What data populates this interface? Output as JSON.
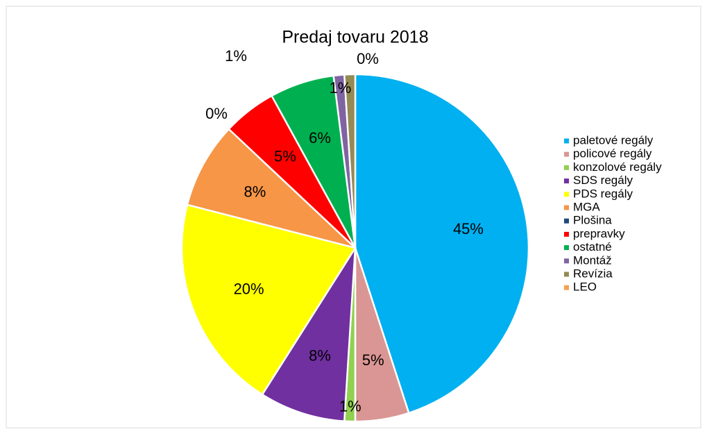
{
  "chart_data": {
    "type": "pie",
    "title": "Predaj tovaru 2018",
    "categories": [
      "paletové regály",
      "policové regály",
      "konzolové regály",
      "SDS regály",
      "PDS regály",
      "MGA",
      "Plošina",
      "prepravky",
      "ostatné",
      "Montáž",
      "Revízia",
      "LEO"
    ],
    "values": [
      45,
      5,
      1,
      8,
      20,
      8,
      0,
      5,
      6,
      1,
      1,
      0
    ],
    "colors": [
      "#00b0f0",
      "#da9694",
      "#92d050",
      "#7030a0",
      "#ffff00",
      "#f79646",
      "#1f497d",
      "#ff0000",
      "#00b050",
      "#8064a2",
      "#948a54",
      "#f8a050"
    ],
    "legend": "right"
  }
}
